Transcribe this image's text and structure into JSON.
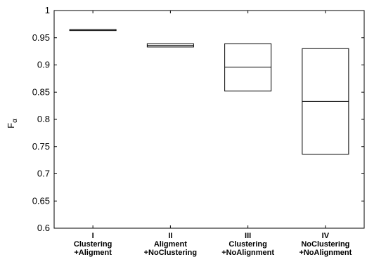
{
  "chart_data": {
    "type": "box",
    "ylabel": "F",
    "ylabel_subscript": "α",
    "ylim": [
      0.6,
      1.0
    ],
    "yticks": [
      "0.6",
      "0.65",
      "0.7",
      "0.75",
      "0.8",
      "0.85",
      "0.9",
      "0.95",
      "1"
    ],
    "categories": [
      {
        "numeral": "I",
        "line1": "Clustering",
        "line2": "+Aligment"
      },
      {
        "numeral": "II",
        "line1": "Aligment",
        "line2": "+NoClustering"
      },
      {
        "numeral": "III",
        "line1": "Clustering",
        "line2": "+NoAlignment"
      },
      {
        "numeral": "IV",
        "line1": "NoClustering",
        "line2": "+NoAlignment"
      }
    ],
    "boxes": [
      {
        "q1": 0.964,
        "median": 0.965,
        "q3": 0.965
      },
      {
        "q1": 0.933,
        "median": 0.936,
        "q3": 0.939
      },
      {
        "q1": 0.852,
        "median": 0.896,
        "q3": 0.939
      },
      {
        "q1": 0.736,
        "median": 0.833,
        "q3": 0.93
      }
    ],
    "grid": false,
    "legend": "none"
  }
}
